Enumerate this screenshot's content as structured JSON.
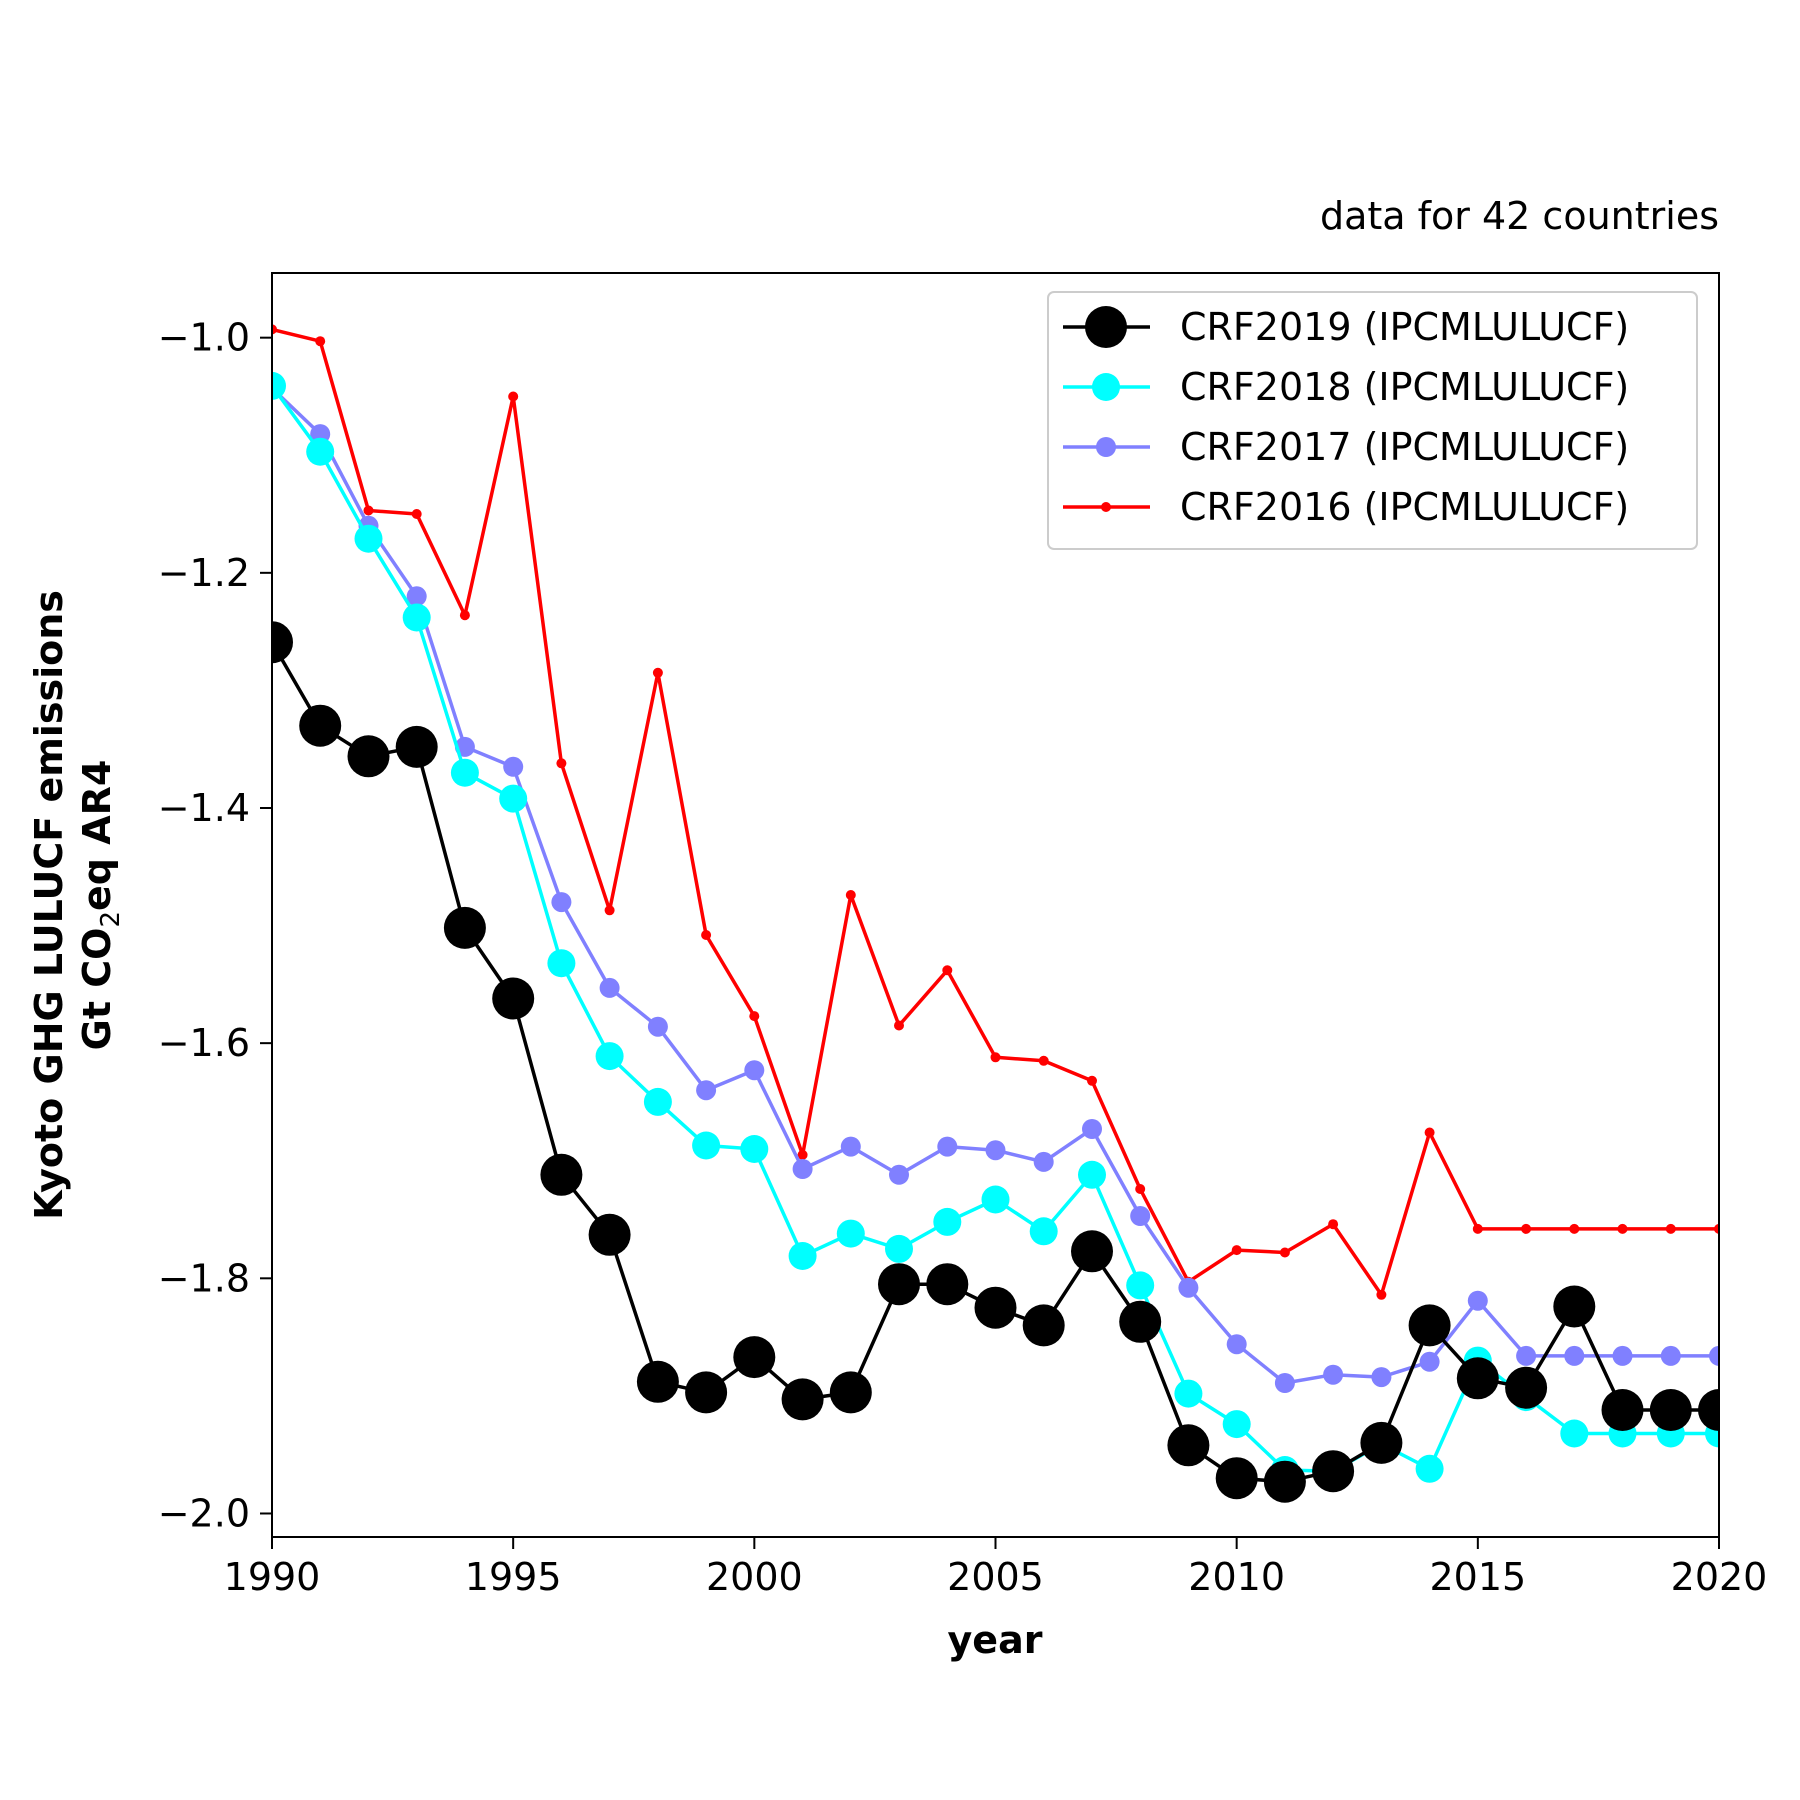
{
  "chart_data": {
    "type": "line",
    "subtitle": "data for 42 countries",
    "xlabel": "year",
    "ylabel_line1": "Kyoto GHG LULUCF emissions",
    "ylabel_line2_prefix": "Gt CO",
    "ylabel_line2_sub": "2",
    "ylabel_line2_suffix": "eq AR4",
    "xlim": [
      1990,
      2020
    ],
    "ylim": [
      -2.02,
      -0.945
    ],
    "x_ticks": [
      1990,
      1995,
      2000,
      2005,
      2010,
      2015,
      2020
    ],
    "y_ticks": [
      -1.0,
      -1.2,
      -1.4,
      -1.6,
      -1.8,
      -2.0
    ],
    "y_tick_labels": [
      "−1.0",
      "−1.2",
      "−1.4",
      "−1.6",
      "−1.8",
      "−2.0"
    ],
    "grid": false,
    "legend_position": "top-right",
    "series": [
      {
        "name": "CRF2016 (IPCMLULUCF)",
        "color": "#ff0000",
        "marker_size": "small",
        "x": [
          1990,
          1991,
          1992,
          1993,
          1994,
          1995,
          1996,
          1997,
          1998,
          1999,
          2000,
          2001,
          2002,
          2003,
          2004,
          2005,
          2006,
          2007,
          2008,
          2009,
          2010,
          2011,
          2012,
          2013,
          2014,
          2015,
          2016,
          2017,
          2018,
          2019,
          2020
        ],
        "values": [
          -0.993,
          -1.003,
          -1.147,
          -1.15,
          -1.236,
          -1.05,
          -1.362,
          -1.487,
          -1.285,
          -1.508,
          -1.577,
          -1.695,
          -1.474,
          -1.585,
          -1.538,
          -1.612,
          -1.615,
          -1.632,
          -1.724,
          -1.803,
          -1.776,
          -1.778,
          -1.754,
          -1.814,
          -1.676,
          -1.758,
          -1.758,
          -1.758,
          -1.758,
          -1.758,
          -1.758
        ]
      },
      {
        "name": "CRF2017 (IPCMLULUCF)",
        "color": "#8080ff",
        "marker_size": "medium",
        "x": [
          1990,
          1991,
          1992,
          1993,
          1994,
          1995,
          1996,
          1997,
          1998,
          1999,
          2000,
          2001,
          2002,
          2003,
          2004,
          2005,
          2006,
          2007,
          2008,
          2009,
          2010,
          2011,
          2012,
          2013,
          2014,
          2015,
          2016,
          2017,
          2018,
          2019,
          2020
        ],
        "values": [
          -1.043,
          -1.082,
          -1.16,
          -1.22,
          -1.348,
          -1.365,
          -1.48,
          -1.553,
          -1.586,
          -1.64,
          -1.623,
          -1.707,
          -1.688,
          -1.712,
          -1.688,
          -1.691,
          -1.701,
          -1.673,
          -1.747,
          -1.808,
          -1.856,
          -1.889,
          -1.882,
          -1.884,
          -1.871,
          -1.819,
          -1.866,
          -1.866,
          -1.866,
          -1.866,
          -1.866
        ]
      },
      {
        "name": "CRF2018 (IPCMLULUCF)",
        "color": "#00ffff",
        "marker_size": "large",
        "x": [
          1990,
          1991,
          1992,
          1993,
          1994,
          1995,
          1996,
          1997,
          1998,
          1999,
          2000,
          2001,
          2002,
          2003,
          2004,
          2005,
          2006,
          2007,
          2008,
          2009,
          2010,
          2011,
          2012,
          2013,
          2014,
          2015,
          2016,
          2017,
          2018,
          2019,
          2020
        ],
        "values": [
          -1.041,
          -1.097,
          -1.171,
          -1.238,
          -1.37,
          -1.392,
          -1.532,
          -1.611,
          -1.65,
          -1.687,
          -1.69,
          -1.781,
          -1.762,
          -1.775,
          -1.752,
          -1.733,
          -1.76,
          -1.712,
          -1.806,
          -1.898,
          -1.924,
          -1.963,
          -1.964,
          -1.941,
          -1.962,
          -1.87,
          -1.901,
          -1.932,
          -1.932,
          -1.932,
          -1.932
        ]
      },
      {
        "name": "CRF2019 (IPCMLULUCF)",
        "color": "#000000",
        "marker_size": "xlarge",
        "x": [
          1990,
          1991,
          1992,
          1993,
          1994,
          1995,
          1996,
          1997,
          1998,
          1999,
          2000,
          2001,
          2002,
          2003,
          2004,
          2005,
          2006,
          2007,
          2008,
          2009,
          2010,
          2011,
          2012,
          2013,
          2014,
          2015,
          2016,
          2017,
          2018,
          2019,
          2020
        ],
        "values": [
          -1.259,
          -1.33,
          -1.356,
          -1.348,
          -1.502,
          -1.562,
          -1.712,
          -1.763,
          -1.888,
          -1.897,
          -1.867,
          -1.903,
          -1.897,
          -1.805,
          -1.805,
          -1.825,
          -1.84,
          -1.777,
          -1.837,
          -1.942,
          -1.97,
          -1.973,
          -1.964,
          -1.94,
          -1.84,
          -1.885,
          -1.893,
          -1.824,
          -1.912,
          -1.912,
          -1.912
        ]
      }
    ],
    "legend_order": [
      3,
      2,
      1,
      0
    ]
  }
}
